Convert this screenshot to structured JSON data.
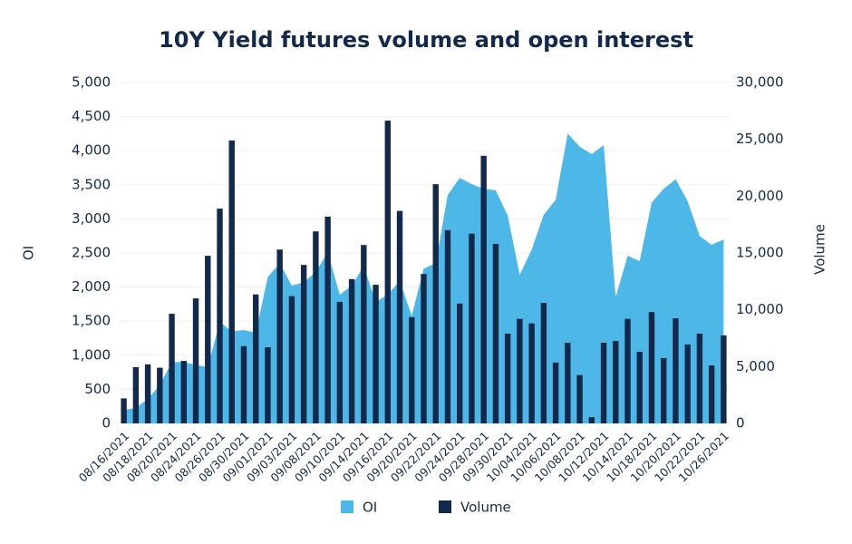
{
  "chart_data": {
    "type": "combo",
    "title": "10Y Yield futures volume and open interest",
    "y_label": "OI",
    "y2_label": "Volume",
    "categories": [
      "08/16/2021",
      null,
      "08/18/2021",
      null,
      "08/20/2021",
      null,
      "08/24/2021",
      null,
      "08/26/2021",
      null,
      "08/30/2021",
      null,
      "09/01/2021",
      null,
      "09/03/2021",
      null,
      "09/08/2021",
      null,
      "09/10/2021",
      null,
      "09/14/2021",
      null,
      "09/16/2021",
      null,
      "09/20/2021",
      null,
      "09/22/2021",
      null,
      "09/24/2021",
      null,
      "09/28/2021",
      null,
      "09/30/2021",
      null,
      "10/04/2021",
      null,
      "10/06/2021",
      null,
      "10/08/2021",
      null,
      "10/12/2021",
      null,
      "10/14/2021",
      null,
      "10/18/2021",
      null,
      "10/20/2021",
      null,
      "10/22/2021",
      null,
      "10/26/2021"
    ],
    "series": [
      {
        "name": "OI",
        "type": "area",
        "color": "#4db8e8",
        "values": [
          200,
          225,
          360,
          560,
          900,
          900,
          860,
          825,
          1490,
          1350,
          1370,
          1330,
          2150,
          2350,
          2020,
          2070,
          2220,
          2510,
          1890,
          2020,
          2310,
          1780,
          1890,
          2090,
          1580,
          2270,
          2350,
          3350,
          3600,
          3510,
          3440,
          3420,
          3050,
          2180,
          2550,
          3060,
          3280,
          4250,
          4060,
          3950,
          4080,
          1850,
          2460,
          2380,
          3240,
          3440,
          3580,
          3260,
          2750,
          2620,
          2700
        ]
      },
      {
        "name": "Volume",
        "type": "bar",
        "axis": "y2",
        "color": "#13294b",
        "values": [
          2200,
          4950,
          5200,
          4900,
          9650,
          5500,
          11000,
          14750,
          18900,
          24900,
          6800,
          11350,
          6700,
          15300,
          11200,
          13950,
          16900,
          18200,
          10700,
          12700,
          15700,
          12200,
          26650,
          18700,
          9350,
          13150,
          21050,
          17000,
          10550,
          16700,
          23550,
          15800,
          7900,
          9200,
          8800,
          10600,
          5350,
          7100,
          4250,
          550,
          7100,
          7250,
          9200,
          6300,
          9800,
          5750,
          9250,
          6950,
          7900,
          5100,
          7750
        ]
      }
    ],
    "ylim": [
      0,
      5000
    ],
    "yticks": [
      0,
      500,
      {
        "value": 1000,
        "label": "1,000"
      },
      {
        "value": 1500,
        "label": "1,500"
      },
      {
        "value": 2000,
        "label": "2,000"
      },
      {
        "value": 2500,
        "label": "2,500"
      },
      {
        "value": 3000,
        "label": "3,000"
      },
      {
        "value": 3500,
        "label": "3,500"
      },
      {
        "value": 4000,
        "label": "4,000"
      },
      {
        "value": 4500,
        "label": "4,500"
      },
      {
        "value": 5000,
        "label": "5,000"
      }
    ],
    "y2lim": [
      0,
      30000
    ],
    "y2ticks": [
      0,
      {
        "value": 5000,
        "label": "5,000"
      },
      {
        "value": 10000,
        "label": "10,000"
      },
      {
        "value": 15000,
        "label": "15,000"
      },
      {
        "value": 20000,
        "label": "20,000"
      },
      {
        "value": 25000,
        "label": "25,000"
      },
      {
        "value": 30000,
        "label": "30,000"
      }
    ],
    "grid": true,
    "legend": "bottom"
  }
}
